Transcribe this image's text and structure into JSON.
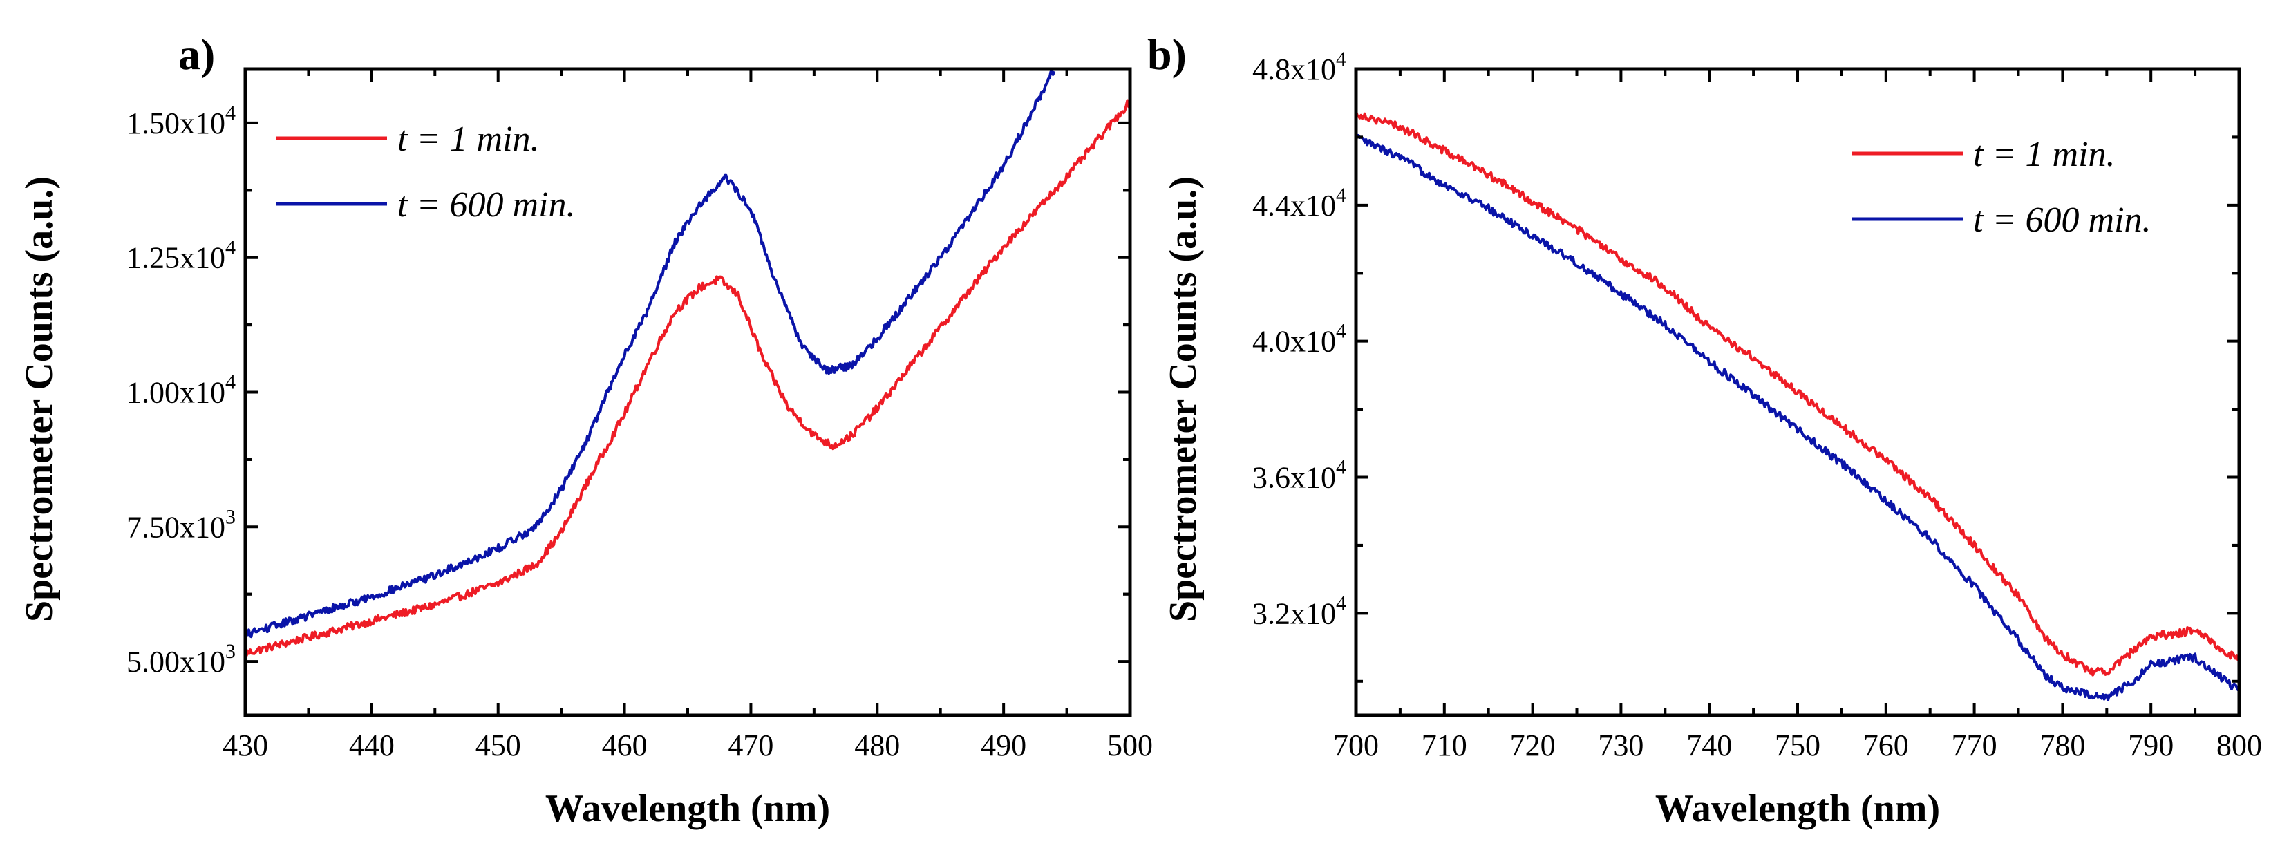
{
  "chart_data": [
    {
      "panel_label": "a)",
      "type": "line",
      "xlabel": "Wavelength (nm)",
      "ylabel": "Spectrometer Counts (a.u.)",
      "xlim": [
        430,
        500
      ],
      "ylim": [
        4000,
        16000
      ],
      "x_ticks": [
        430,
        440,
        450,
        460,
        470,
        480,
        490,
        500
      ],
      "x_tick_labels": [
        "430",
        "440",
        "450",
        "460",
        "470",
        "480",
        "490",
        "500"
      ],
      "y_ticks": [
        5000,
        7500,
        10000,
        12500,
        15000
      ],
      "y_tick_labels": [
        {
          "mantissa": "5.00x10",
          "exp": "3"
        },
        {
          "mantissa": "7.50x10",
          "exp": "3"
        },
        {
          "mantissa": "1.00x10",
          "exp": "4"
        },
        {
          "mantissa": "1.25x10",
          "exp": "4"
        },
        {
          "mantissa": "1.50x10",
          "exp": "4"
        }
      ],
      "legend_position": "top-left",
      "series": [
        {
          "name": "t = 1 min.",
          "color": "#ee1c25",
          "x": [
            430,
            435,
            440,
            445,
            450,
            453,
            455,
            457,
            460,
            462,
            464,
            466,
            467.5,
            469,
            471,
            473,
            475,
            476.5,
            478,
            480,
            485,
            490,
            495,
            500
          ],
          "y": [
            5150,
            5450,
            5750,
            6050,
            6450,
            6800,
            7400,
            8300,
            9600,
            10600,
            11500,
            11950,
            12100,
            11800,
            10600,
            9700,
            9200,
            9000,
            9200,
            9700,
            11200,
            12700,
            14000,
            15400
          ]
        },
        {
          "name": "t = 600 min.",
          "color": "#0a14a8",
          "x": [
            430,
            435,
            440,
            445,
            450,
            453,
            455,
            457,
            460,
            462,
            464,
            466,
            468,
            470,
            472,
            474,
            476,
            478,
            480,
            485,
            490,
            494
          ],
          "y": [
            5500,
            5850,
            6200,
            6600,
            7100,
            7500,
            8200,
            9100,
            10700,
            11600,
            12800,
            13500,
            14000,
            13400,
            12000,
            10900,
            10400,
            10500,
            11000,
            12500,
            14200,
            16000
          ]
        }
      ]
    },
    {
      "panel_label": "b)",
      "type": "line",
      "xlabel": "Wavelength (nm)",
      "ylabel": "Spectrometer Counts (a.u.)",
      "xlim": [
        700,
        800
      ],
      "ylim": [
        29000,
        48000
      ],
      "x_ticks": [
        700,
        710,
        720,
        730,
        740,
        750,
        760,
        770,
        780,
        790,
        800
      ],
      "x_tick_labels": [
        "700",
        "710",
        "720",
        "730",
        "740",
        "750",
        "760",
        "770",
        "780",
        "790",
        "800"
      ],
      "y_ticks": [
        32000,
        36000,
        40000,
        44000,
        48000
      ],
      "y_tick_labels": [
        {
          "mantissa": "3.2x10",
          "exp": "4"
        },
        {
          "mantissa": "3.6x10",
          "exp": "4"
        },
        {
          "mantissa": "4.0x10",
          "exp": "4"
        },
        {
          "mantissa": "4.4x10",
          "exp": "4"
        },
        {
          "mantissa": "4.8x10",
          "exp": "4"
        }
      ],
      "legend_position": "top-right",
      "series": [
        {
          "name": "t = 1 min.",
          "color": "#ee1c25",
          "x": [
            700,
            705,
            710,
            715,
            720,
            725,
            730,
            735,
            740,
            745,
            750,
            755,
            760,
            765,
            770,
            775,
            778,
            780,
            783,
            785,
            788,
            790,
            795,
            800
          ],
          "y": [
            46700,
            46300,
            45600,
            44900,
            44100,
            43300,
            42400,
            41600,
            40400,
            39500,
            38500,
            37500,
            36500,
            35400,
            34000,
            32500,
            31300,
            30800,
            30300,
            30300,
            30900,
            31300,
            31500,
            30600
          ]
        },
        {
          "name": "t = 600 min.",
          "color": "#0a14a8",
          "x": [
            700,
            705,
            710,
            715,
            720,
            725,
            730,
            735,
            740,
            745,
            750,
            755,
            760,
            765,
            770,
            775,
            778,
            780,
            783,
            785,
            788,
            790,
            795,
            800
          ],
          "y": [
            46000,
            45400,
            44600,
            43900,
            43100,
            42300,
            41400,
            40500,
            39400,
            38400,
            37400,
            36400,
            35300,
            34200,
            32800,
            31200,
            30200,
            29800,
            29600,
            29500,
            30000,
            30500,
            30700,
            29700
          ]
        }
      ]
    }
  ]
}
